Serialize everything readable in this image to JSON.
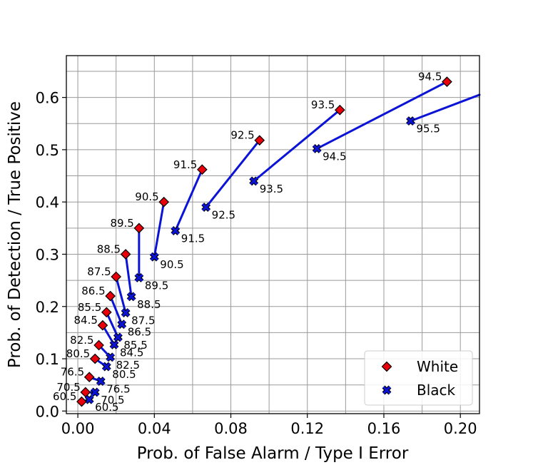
{
  "chart_data": {
    "type": "scatter",
    "xlabel": "Prob. of False Alarm / Type I Error",
    "ylabel": "Prob. of Detection / True Positive",
    "xlim": [
      -0.006,
      0.21
    ],
    "ylim": [
      -0.005,
      0.68
    ],
    "xticks": [
      0.0,
      0.04,
      0.08,
      0.12,
      0.16,
      0.2
    ],
    "xtick_labels": [
      "0.00",
      "0.04",
      "0.08",
      "0.12",
      "0.16",
      "0.20"
    ],
    "yticks": [
      0.0,
      0.1,
      0.2,
      0.3,
      0.4,
      0.5,
      0.6
    ],
    "ytick_labels": [
      "0.0",
      "0.1",
      "0.2",
      "0.3",
      "0.4",
      "0.5",
      "0.6"
    ],
    "minor_xticks": [
      0.02,
      0.06,
      0.1,
      0.14,
      0.18
    ],
    "minor_yticks": [
      0.05,
      0.15,
      0.25,
      0.35,
      0.45,
      0.55,
      0.65
    ],
    "grid": true,
    "legend_position": "bottom-right",
    "series": [
      {
        "name": "White",
        "marker": "diamond",
        "color": "#e8000b",
        "points": [
          {
            "label": "60.5",
            "x": 0.002,
            "y": 0.018
          },
          {
            "label": "70.5",
            "x": 0.004,
            "y": 0.036
          },
          {
            "label": "76.5",
            "x": 0.006,
            "y": 0.065
          },
          {
            "label": "80.5",
            "x": 0.009,
            "y": 0.1
          },
          {
            "label": "82.5",
            "x": 0.011,
            "y": 0.126
          },
          {
            "label": "84.5",
            "x": 0.013,
            "y": 0.164
          },
          {
            "label": "85.5",
            "x": 0.015,
            "y": 0.189
          },
          {
            "label": "86.5",
            "x": 0.017,
            "y": 0.22
          },
          {
            "label": "87.5",
            "x": 0.02,
            "y": 0.257
          },
          {
            "label": "88.5",
            "x": 0.025,
            "y": 0.3
          },
          {
            "label": "89.5",
            "x": 0.032,
            "y": 0.35
          },
          {
            "label": "90.5",
            "x": 0.045,
            "y": 0.4
          },
          {
            "label": "91.5",
            "x": 0.065,
            "y": 0.462
          },
          {
            "label": "92.5",
            "x": 0.095,
            "y": 0.518
          },
          {
            "label": "93.5",
            "x": 0.137,
            "y": 0.576
          },
          {
            "label": "94.5",
            "x": 0.193,
            "y": 0.63
          }
        ]
      },
      {
        "name": "Black",
        "marker": "x",
        "color": "#0b14d6",
        "points": [
          {
            "label": "60.5",
            "x": 0.006,
            "y": 0.022
          },
          {
            "label": "70.5",
            "x": 0.009,
            "y": 0.036
          },
          {
            "label": "76.5",
            "x": 0.012,
            "y": 0.057
          },
          {
            "label": "80.5",
            "x": 0.015,
            "y": 0.085
          },
          {
            "label": "82.5",
            "x": 0.017,
            "y": 0.103
          },
          {
            "label": "84.5",
            "x": 0.019,
            "y": 0.127
          },
          {
            "label": "85.5",
            "x": 0.021,
            "y": 0.141
          },
          {
            "label": "86.5",
            "x": 0.023,
            "y": 0.166
          },
          {
            "label": "87.5",
            "x": 0.025,
            "y": 0.188
          },
          {
            "label": "88.5",
            "x": 0.028,
            "y": 0.219
          },
          {
            "label": "89.5",
            "x": 0.032,
            "y": 0.255
          },
          {
            "label": "90.5",
            "x": 0.04,
            "y": 0.295
          },
          {
            "label": "91.5",
            "x": 0.051,
            "y": 0.345
          },
          {
            "label": "92.5",
            "x": 0.067,
            "y": 0.39
          },
          {
            "label": "93.5",
            "x": 0.092,
            "y": 0.44
          },
          {
            "label": "94.5",
            "x": 0.125,
            "y": 0.502
          },
          {
            "label": "95.5",
            "x": 0.174,
            "y": 0.555
          }
        ]
      }
    ],
    "connectors": {
      "color": "#0b14d6",
      "pairs": [
        [
          "60.5",
          "60.5"
        ],
        [
          "70.5",
          "70.5"
        ],
        [
          "76.5",
          "76.5"
        ],
        [
          "80.5",
          "80.5"
        ],
        [
          "82.5",
          "82.5"
        ],
        [
          "84.5",
          "84.5"
        ],
        [
          "85.5",
          "85.5"
        ],
        [
          "86.5",
          "86.5"
        ],
        [
          "87.5",
          "87.5"
        ],
        [
          "88.5",
          "88.5"
        ],
        [
          "89.5",
          "89.5"
        ],
        [
          "90.5",
          "90.5"
        ],
        [
          "91.5",
          "91.5"
        ],
        [
          "92.5",
          "92.5"
        ],
        [
          "93.5",
          "93.5"
        ],
        [
          "94.5",
          "94.5"
        ]
      ],
      "extension": {
        "from": "95.5",
        "to_x": 0.21,
        "to_y": 0.605
      }
    }
  }
}
